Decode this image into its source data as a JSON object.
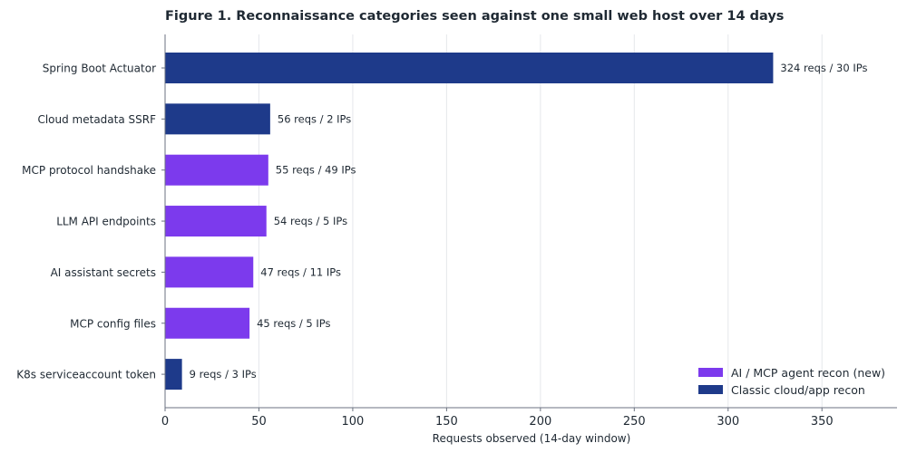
{
  "chart_data": {
    "type": "bar",
    "orientation": "horizontal",
    "title": "Figure 1.  Reconnaissance categories seen against one small web host over 14 days",
    "xlabel": "Requests observed (14-day window)",
    "ylabel": "",
    "xlim": [
      0,
      390
    ],
    "xticks": [
      0,
      50,
      100,
      150,
      200,
      250,
      300,
      350
    ],
    "grid": "vertical",
    "legend_position": "bottom-right",
    "categories": [
      "Spring Boot Actuator",
      "Cloud metadata SSRF",
      "MCP protocol handshake",
      "LLM API endpoints",
      "AI assistant secrets",
      "MCP config files",
      "K8s serviceaccount token"
    ],
    "values": [
      324,
      56,
      55,
      54,
      47,
      45,
      9
    ],
    "groups": [
      "classic",
      "classic",
      "ai",
      "ai",
      "ai",
      "ai",
      "classic"
    ],
    "data_labels": [
      "324 reqs / 30 IPs",
      "56 reqs / 2 IPs",
      "55 reqs / 49 IPs",
      "54 reqs / 5 IPs",
      "47 reqs / 11 IPs",
      "45 reqs / 5 IPs",
      "9 reqs / 3 IPs"
    ],
    "legend": [
      {
        "key": "ai",
        "label": "AI / MCP agent recon (new)",
        "color": "#7c3aed"
      },
      {
        "key": "classic",
        "label": "Classic cloud/app recon",
        "color": "#1e3a8a"
      }
    ]
  }
}
